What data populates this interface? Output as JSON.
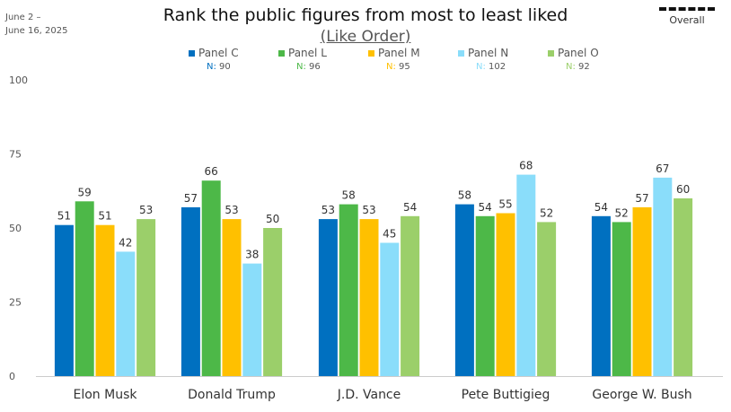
{
  "date_range": [
    "June 2 –",
    "June 16, 2025"
  ],
  "legend_extra": {
    "label": "Overall"
  },
  "chart_data": {
    "type": "bar",
    "title": "Rank the public figures from most to least liked",
    "subtitle": "(Like Order)",
    "categories": [
      "Elon Musk",
      "Donald Trump",
      "J.D. Vance",
      "Pete Buttigieg",
      "George W. Bush"
    ],
    "series": [
      {
        "name": "Panel C",
        "n_label": "N:",
        "n": "90",
        "color": "#0070C0",
        "values": [
          51,
          57,
          53,
          58,
          54
        ]
      },
      {
        "name": "Panel L",
        "n_label": "N:",
        "n": "96",
        "color": "#4DB848",
        "values": [
          59,
          66,
          58,
          54,
          52
        ]
      },
      {
        "name": "Panel M",
        "n_label": "N:",
        "n": "95",
        "color": "#FFC000",
        "values": [
          51,
          53,
          53,
          55,
          57
        ]
      },
      {
        "name": "Panel N",
        "n_label": "N:",
        "n": "102",
        "color": "#8ADDFA",
        "values": [
          42,
          38,
          45,
          68,
          67
        ]
      },
      {
        "name": "Panel O",
        "n_label": "N:",
        "n": "92",
        "color": "#9BCF6A",
        "values": [
          53,
          50,
          54,
          52,
          60
        ]
      }
    ],
    "yticks": [
      0,
      25,
      50,
      75,
      100
    ],
    "ylim": [
      0,
      100
    ],
    "legend_position": "top",
    "grid": false
  }
}
